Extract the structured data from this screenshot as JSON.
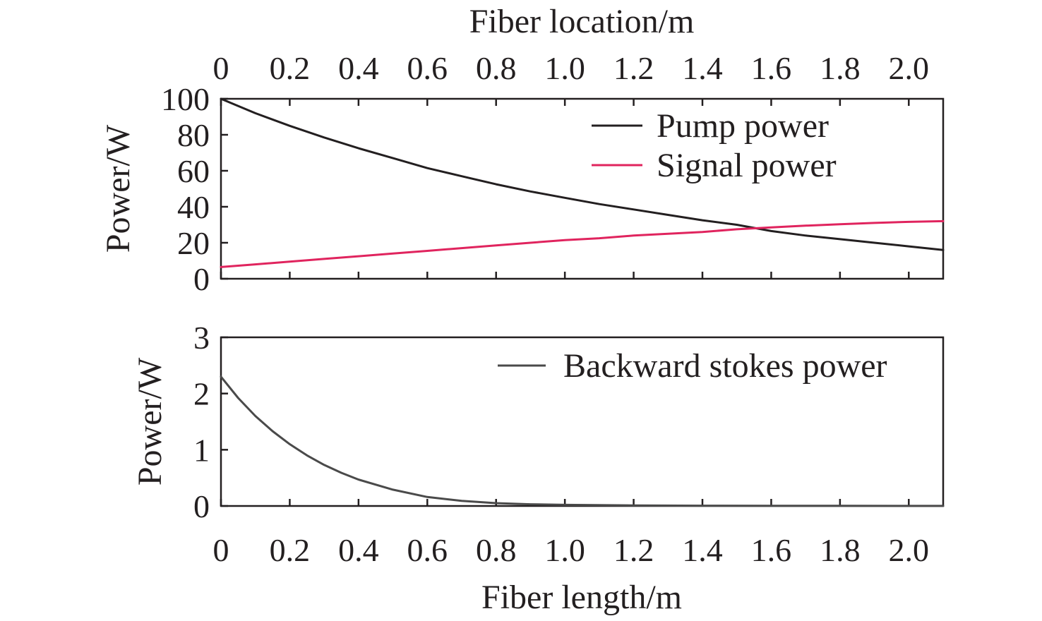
{
  "chart_data": [
    {
      "type": "line",
      "panel": "top",
      "xlabel_top": "Fiber location/m",
      "ylabel": "Power/W",
      "xlim": [
        0,
        2.1
      ],
      "ylim": [
        0,
        100
      ],
      "x_ticks": [
        0,
        0.2,
        0.4,
        0.6,
        0.8,
        1.0,
        1.2,
        1.4,
        1.6,
        1.8,
        2.0
      ],
      "x_tick_labels": [
        "0",
        "0.2",
        "0.4",
        "0.6",
        "0.8",
        "1.0",
        "1.2",
        "1.4",
        "1.6",
        "1.8",
        "2.0"
      ],
      "y_ticks": [
        0,
        20,
        40,
        60,
        80,
        100
      ],
      "y_tick_labels": [
        "0",
        "20",
        "40",
        "60",
        "80",
        "100"
      ],
      "grid": false,
      "legend_position": "top-right",
      "x": [
        0,
        0.1,
        0.2,
        0.3,
        0.4,
        0.5,
        0.6,
        0.7,
        0.8,
        0.9,
        1.0,
        1.1,
        1.2,
        1.3,
        1.4,
        1.5,
        1.6,
        1.7,
        1.8,
        1.9,
        2.0,
        2.1
      ],
      "series": [
        {
          "name": "Pump power",
          "color": "#231f20",
          "values": [
            100,
            92,
            85,
            78.5,
            72.5,
            67,
            61.5,
            57,
            52.5,
            48.5,
            45,
            41.5,
            38.5,
            35.5,
            32.5,
            30,
            26.5,
            24,
            22,
            20,
            18,
            16
          ]
        },
        {
          "name": "Signal power",
          "color": "#e0245e",
          "values": [
            6.5,
            8,
            9.5,
            11,
            12.5,
            14,
            15.5,
            17,
            18.5,
            20,
            21.5,
            22.5,
            24,
            25,
            26,
            27.5,
            28.5,
            29.5,
            30.3,
            31,
            31.6,
            32
          ]
        }
      ]
    },
    {
      "type": "line",
      "panel": "bottom",
      "xlabel": "Fiber length/m",
      "ylabel": "Power/W",
      "xlim": [
        0,
        2.1
      ],
      "ylim": [
        0,
        3
      ],
      "x_ticks": [
        0,
        0.2,
        0.4,
        0.6,
        0.8,
        1.0,
        1.2,
        1.4,
        1.6,
        1.8,
        2.0
      ],
      "x_tick_labels": [
        "0",
        "0.2",
        "0.4",
        "0.6",
        "0.8",
        "1.0",
        "1.2",
        "1.4",
        "1.6",
        "1.8",
        "2.0"
      ],
      "y_ticks": [
        0,
        1,
        2,
        3
      ],
      "y_tick_labels": [
        "0",
        "1",
        "2",
        "3"
      ],
      "grid": false,
      "legend_position": "top-right",
      "x": [
        0,
        0.05,
        0.1,
        0.15,
        0.2,
        0.25,
        0.3,
        0.35,
        0.4,
        0.5,
        0.6,
        0.7,
        0.8,
        0.9,
        1.0,
        1.2,
        1.4,
        1.6,
        1.8,
        2.0,
        2.1
      ],
      "series": [
        {
          "name": "Backward stokes power",
          "color": "#4a4a4a",
          "values": [
            2.3,
            1.92,
            1.6,
            1.33,
            1.1,
            0.9,
            0.73,
            0.59,
            0.47,
            0.29,
            0.16,
            0.09,
            0.05,
            0.03,
            0.02,
            0.01,
            0.005,
            0.003,
            0.002,
            0.001,
            0.001
          ]
        }
      ]
    }
  ]
}
